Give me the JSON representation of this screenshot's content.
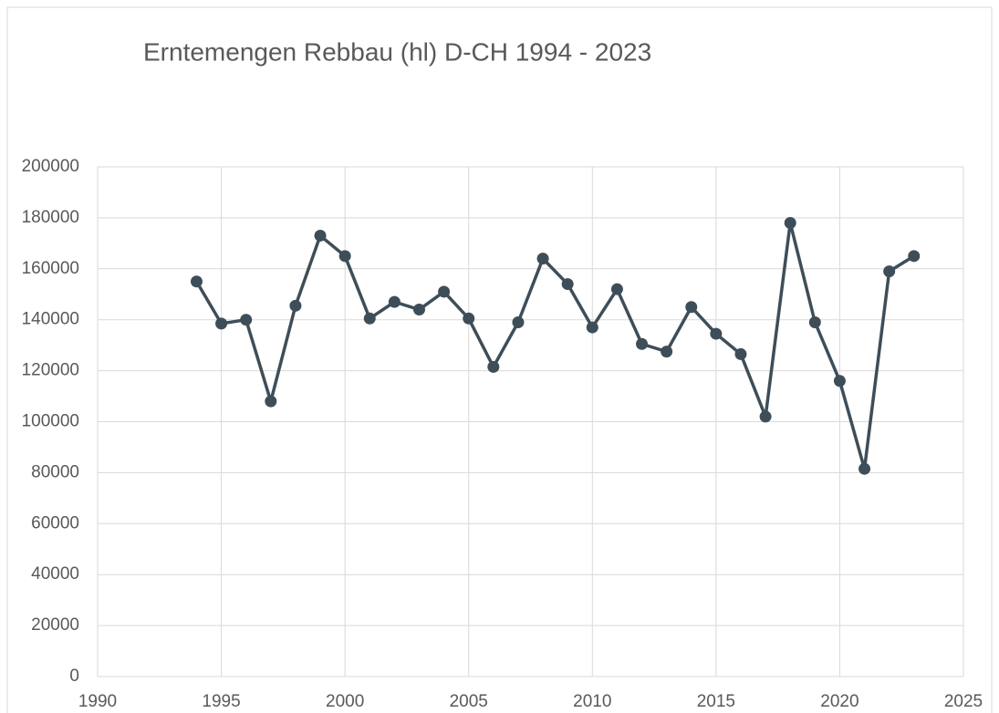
{
  "chart_data": {
    "type": "line",
    "title": "Erntemengen Rebbau (hl) D-CH  1994 - 2023",
    "x": [
      1994,
      1995,
      1996,
      1997,
      1998,
      1999,
      2000,
      2001,
      2002,
      2003,
      2004,
      2005,
      2006,
      2007,
      2008,
      2009,
      2010,
      2011,
      2012,
      2013,
      2014,
      2015,
      2016,
      2017,
      2018,
      2019,
      2020,
      2021,
      2022,
      2023
    ],
    "series": [
      {
        "color": "#3e4e59",
        "values": [
          155000,
          138500,
          140000,
          108000,
          145500,
          173000,
          165000,
          140500,
          147000,
          144000,
          151000,
          140500,
          121500,
          139000,
          164000,
          154000,
          137000,
          152000,
          130500,
          127500,
          145000,
          134500,
          126500,
          102000,
          178000,
          139000,
          116000,
          81500,
          159000,
          165000
        ]
      }
    ],
    "xlim": [
      1990,
      2025
    ],
    "xticks": [
      1990,
      1995,
      2000,
      2005,
      2010,
      2015,
      2020,
      2025
    ],
    "ylim": [
      0,
      200000
    ],
    "yticks": [
      0,
      20000,
      40000,
      60000,
      80000,
      100000,
      120000,
      140000,
      160000,
      180000,
      200000
    ],
    "grid": true,
    "markers": true
  }
}
